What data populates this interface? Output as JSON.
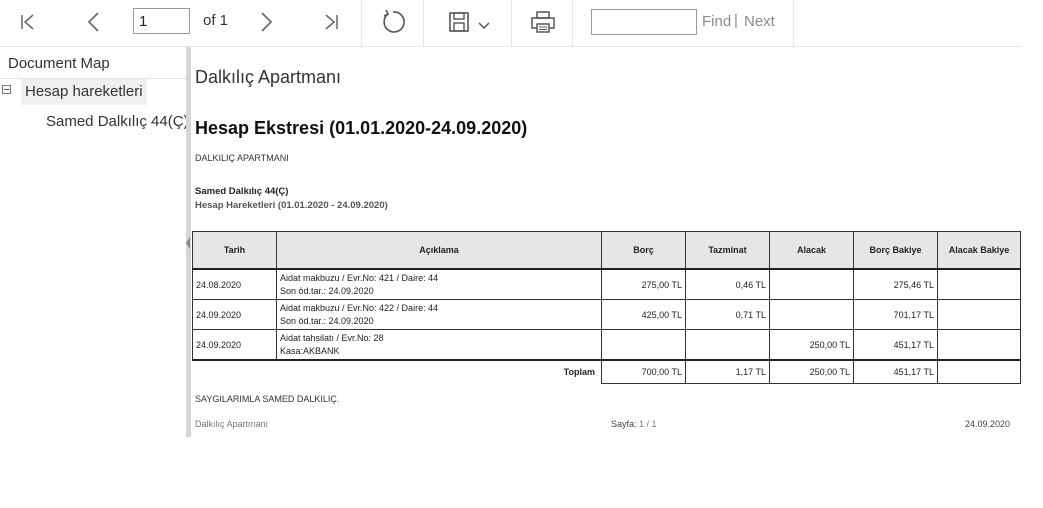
{
  "toolbar": {
    "page_value": "1",
    "of_label": "of 1",
    "find_value": "",
    "find_label": "Find",
    "separator": "|",
    "next_label": "Next"
  },
  "document_map": {
    "title": "Document Map",
    "root_label": "Hesap hareketleri",
    "child_label": "Samed Dalkılıç 44(Ç)"
  },
  "report": {
    "title": "Dalkılıç Apartmanı",
    "heading": "Hesap Ekstresi (01.01.2020-24.09.2020)",
    "company": "DALKILIÇ APARTMANI",
    "account": "Samed Dalkılıç 44(Ç)",
    "subtitle": "Hesap Hareketleri (01.01.2020 - 24.09.2020)",
    "columns": [
      "Tarih",
      "Açıklama",
      "Borç",
      "Tazminat",
      "Alacak",
      "Borç Bakiye",
      "Alacak Bakiye"
    ],
    "rows": [
      {
        "date": "24.08.2020",
        "desc1": "Aidat makbuzu / Evr.No: 421 / Daire: 44",
        "desc2": "Son öd.tar.: 24.09.2020",
        "borc": "275,00 TL",
        "tazminat": "0,46 TL",
        "alacak": "",
        "borc_bakiye": "275,46 TL",
        "alacak_bakiye": ""
      },
      {
        "date": "24.09.2020",
        "desc1": "Aidat makbuzu / Evr.No: 422 / Daire: 44",
        "desc2": "Son öd.tar.: 24.09.2020",
        "borc": "425,00 TL",
        "tazminat": "0,71 TL",
        "alacak": "",
        "borc_bakiye": "701,17 TL",
        "alacak_bakiye": ""
      },
      {
        "date": "24.09.2020",
        "desc1": "Aidat tahsilatı / Evr.No: 28",
        "desc2": "Kasa:AKBANK",
        "borc": "",
        "tazminat": "",
        "alacak": "250,00 TL",
        "borc_bakiye": "451,17 TL",
        "alacak_bakiye": ""
      }
    ],
    "totals": {
      "label": "Toplam",
      "borc": "700,00 TL",
      "tazminat": "1,17 TL",
      "alacak": "250,00 TL",
      "borc_bakiye": "451,17 TL",
      "alacak_bakiye": ""
    },
    "greeting": "SAYGILARIMLA SAMED DALKILIÇ.",
    "footer_left": "Dalkılıç Apartmanı",
    "footer_page_label": "Sayfa:",
    "footer_page_value": "1 / 1",
    "footer_date": "24.09.2020"
  }
}
